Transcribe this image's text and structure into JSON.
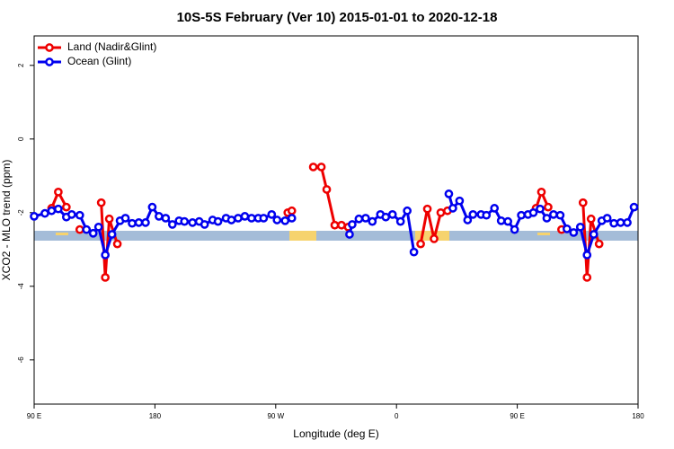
{
  "chart_data": {
    "type": "line",
    "title": "10S-5S February (Ver 10)   2015-01-01 to 2020-12-18",
    "x_label": "Longitude (deg E)",
    "y_label": "XCO2 - MLO trend (ppm)",
    "xlim": [
      90,
      540
    ],
    "ylim": [
      -7.2,
      2.8
    ],
    "xticks": [
      {
        "value": 90,
        "label": "90 E"
      },
      180,
      {
        "value": 270,
        "label": "90 W"
      },
      {
        "value": 360,
        "label": "0"
      },
      {
        "value": 450,
        "label": "90 E"
      },
      {
        "value": 540,
        "label": "180"
      }
    ],
    "yticks": [
      2,
      0,
      -2,
      -4,
      -6
    ],
    "legend": "top-left",
    "series": [
      {
        "name": "Land (Nadir&Glint)",
        "color": "#ee0000",
        "x": [
          103,
          108,
          114,
          null,
          124,
          null,
          140,
          143,
          146,
          152,
          null,
          279,
          282,
          null,
          298,
          304,
          308,
          314,
          319,
          324,
          null,
          378,
          383,
          388,
          393,
          398,
          null,
          464,
          468,
          473,
          null,
          483,
          null,
          499,
          502,
          505,
          511
        ],
        "values": [
          -1.88,
          -1.44,
          -1.85,
          null,
          -2.46,
          null,
          -1.73,
          -3.76,
          -2.17,
          -2.85,
          null,
          -2.0,
          -1.95,
          null,
          -0.76,
          -0.76,
          -1.37,
          -2.34,
          -2.34,
          -2.39,
          null,
          -2.85,
          -1.9,
          -2.71,
          -2.0,
          -1.95,
          null,
          -1.88,
          -1.44,
          -1.85,
          null,
          -2.46,
          null,
          -1.73,
          -3.76,
          -2.17,
          -2.85
        ]
      },
      {
        "name": "Ocean (Glint)",
        "color": "#0000ee",
        "x": [
          90,
          98,
          103,
          108,
          114,
          118,
          124,
          129,
          134,
          138,
          143,
          148,
          154,
          158,
          163,
          168,
          173,
          178,
          183,
          188,
          193,
          198,
          202,
          208,
          213,
          217,
          223,
          227,
          233,
          237,
          242,
          247,
          252,
          257,
          261,
          267,
          271,
          277,
          282,
          null,
          325,
          327,
          332,
          337,
          342,
          348,
          352,
          357,
          363,
          368,
          373,
          null,
          399,
          402,
          407,
          413,
          417,
          423,
          427,
          433,
          438,
          443,
          448,
          453,
          458,
          462,
          467,
          472,
          477,
          482,
          487,
          492,
          497,
          502,
          507,
          513,
          517,
          522,
          527,
          532,
          537
        ],
        "values": [
          -2.1,
          -2.02,
          -1.95,
          -1.9,
          -2.12,
          -2.05,
          -2.07,
          -2.46,
          -2.56,
          -2.39,
          -3.15,
          -2.59,
          -2.22,
          -2.15,
          -2.29,
          -2.27,
          -2.27,
          -1.85,
          -2.1,
          -2.15,
          -2.32,
          -2.22,
          -2.24,
          -2.27,
          -2.24,
          -2.32,
          -2.2,
          -2.24,
          -2.15,
          -2.2,
          -2.15,
          -2.1,
          -2.15,
          -2.15,
          -2.15,
          -2.05,
          -2.2,
          -2.22,
          -2.15,
          null,
          -2.59,
          -2.32,
          -2.17,
          -2.15,
          -2.24,
          -2.05,
          -2.12,
          -2.05,
          -2.24,
          -1.95,
          -3.07,
          null,
          -1.49,
          -1.88,
          -1.68,
          -2.2,
          -2.05,
          -2.05,
          -2.07,
          -1.88,
          -2.22,
          -2.24,
          -2.46,
          -2.07,
          -2.05,
          -2.0,
          -1.9,
          -2.15,
          -2.05,
          -2.07,
          -2.44,
          -2.54,
          -2.39,
          -3.15,
          -2.59,
          -2.22,
          -2.15,
          -2.29,
          -2.27,
          -2.27,
          -1.85
        ]
      }
    ]
  }
}
